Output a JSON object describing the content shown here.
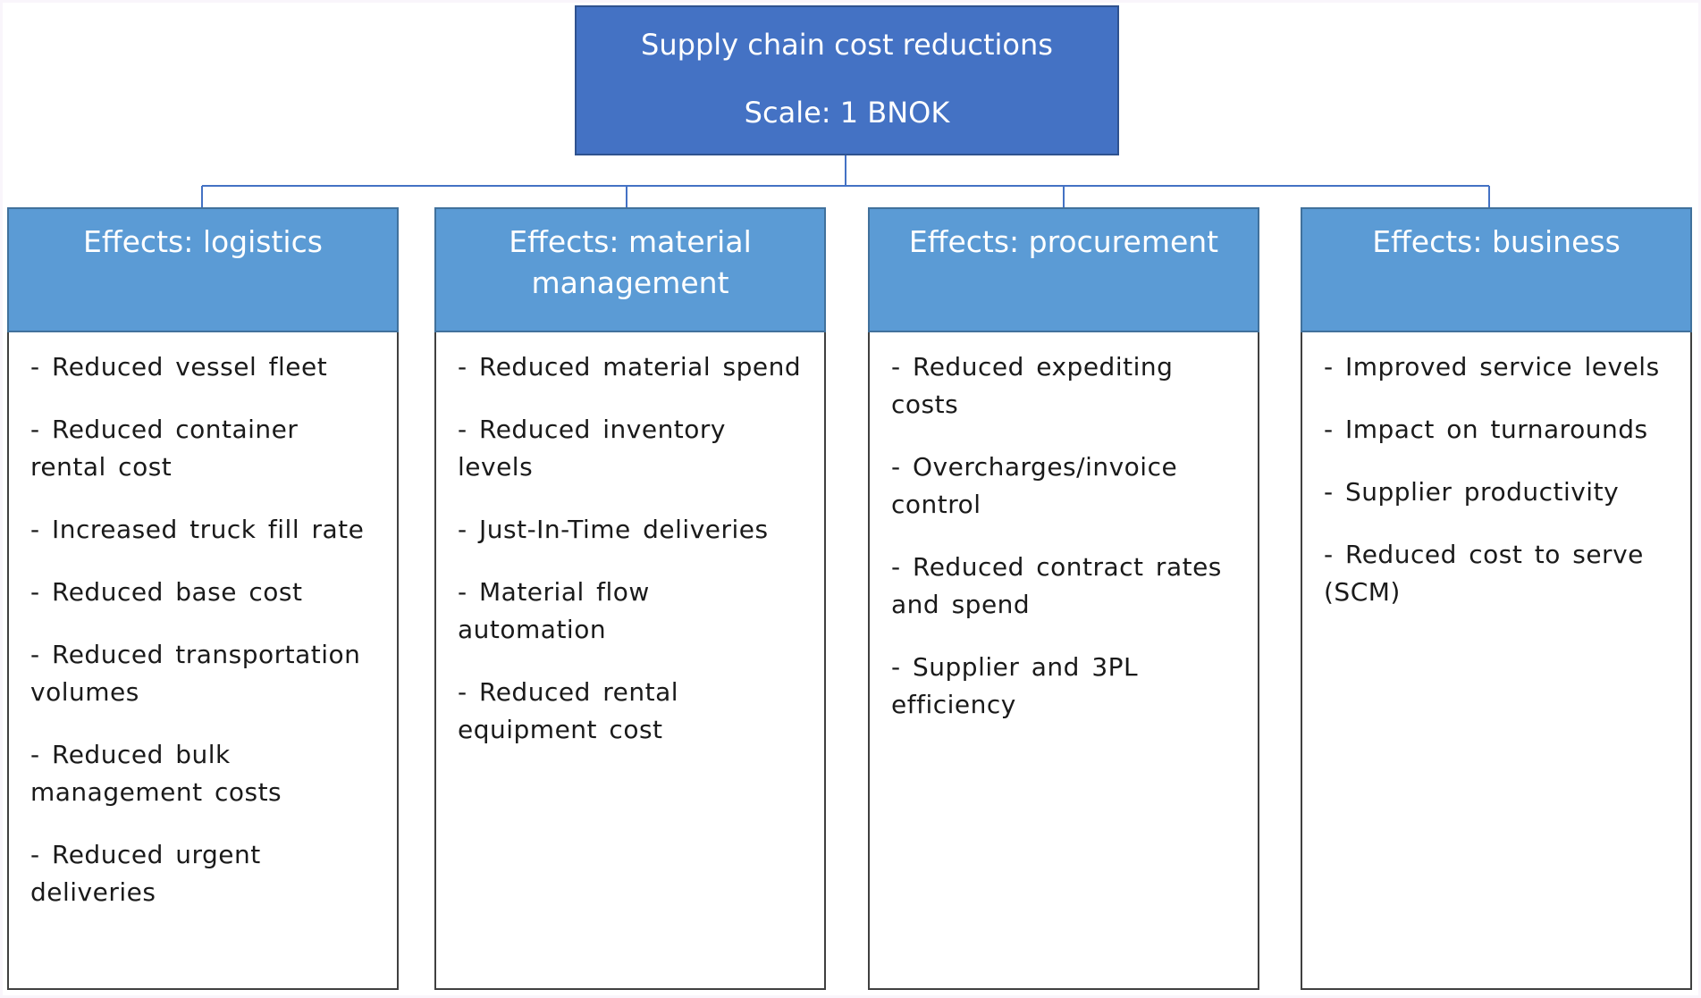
{
  "root": {
    "title": "Supply chain cost reductions",
    "scale": "Scale: 1 BNOK"
  },
  "columns": [
    {
      "header": "Effects: logistics",
      "items": [
        "- Reduced vessel fleet",
        "- Reduced container rental cost",
        "- Increased truck fill rate",
        "- Reduced base cost",
        "- Reduced transportation volumes",
        "- Reduced bulk management costs",
        "- Reduced urgent deliveries"
      ]
    },
    {
      "header": "Effects: material management",
      "items": [
        "- Reduced material spend",
        "- Reduced inventory levels",
        "- Just-In-Time deliveries",
        "- Material flow automation",
        "- Reduced rental equipment cost"
      ]
    },
    {
      "header": "Effects: procurement",
      "items": [
        "- Reduced expediting costs",
        "- Overcharges/invoice control",
        "- Reduced contract rates and spend",
        "- Supplier and 3PL efficiency"
      ]
    },
    {
      "header": "Effects: business",
      "items": [
        "- Improved service levels",
        "- Impact on turnarounds",
        "- Supplier productivity",
        "- Reduced cost to serve (SCM)"
      ]
    }
  ],
  "colors": {
    "root_fill": "#4472c4",
    "header_fill": "#5b9bd5",
    "connector": "#4472c4"
  }
}
